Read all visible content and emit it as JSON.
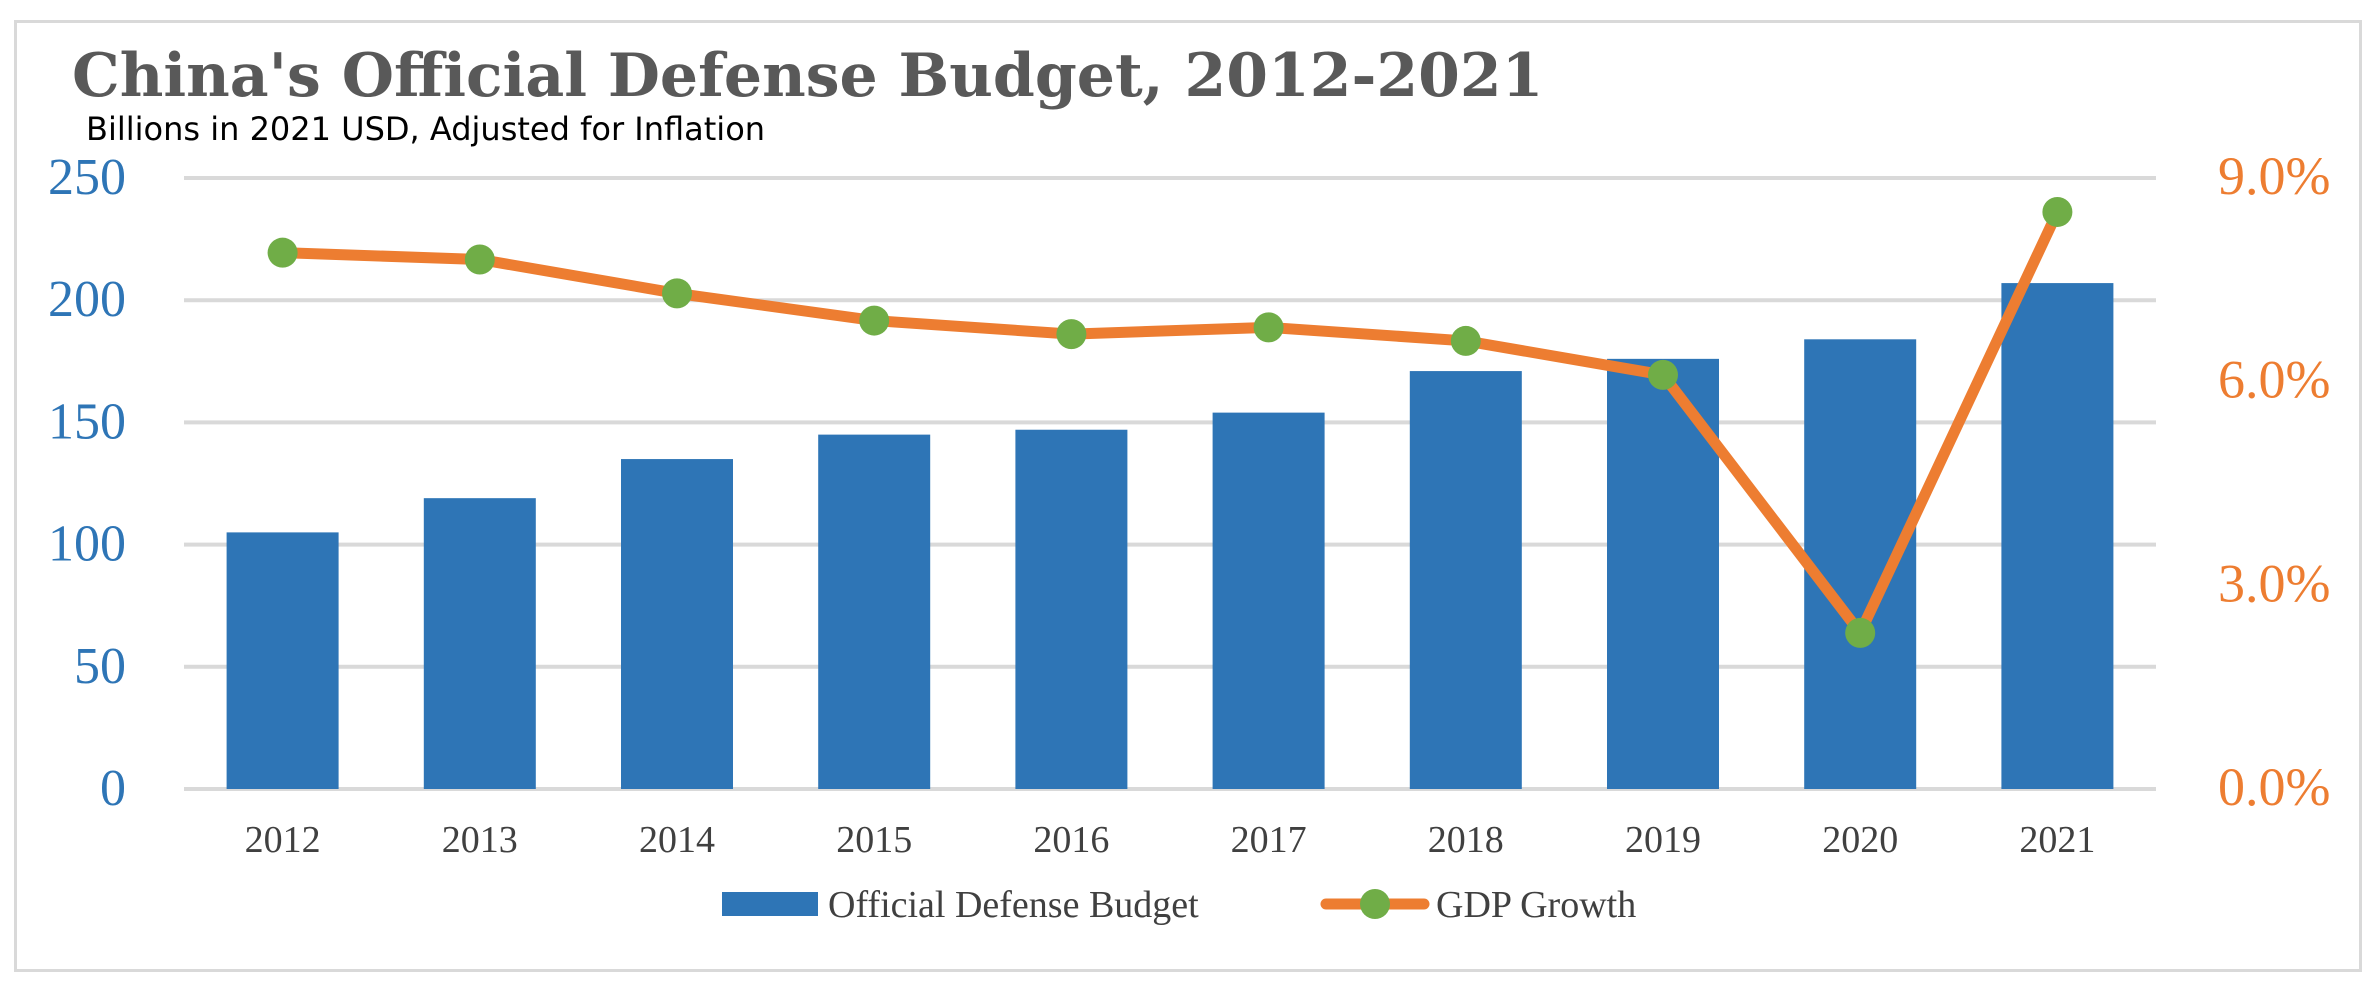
{
  "chart_data": {
    "type": "bar",
    "title": "China's Official Defense Budget, 2012-2021",
    "subtitle": "Billions in 2021 USD, Adjusted for Inflation",
    "categories": [
      "2012",
      "2013",
      "2014",
      "2015",
      "2016",
      "2017",
      "2018",
      "2019",
      "2020",
      "2021"
    ],
    "series": [
      {
        "name": "Official Defense Budget",
        "type": "bar",
        "axis": "left",
        "color": "#2e75b6",
        "values": [
          105,
          119,
          135,
          145,
          147,
          154,
          171,
          176,
          184,
          207
        ]
      },
      {
        "name": "GDP Growth",
        "type": "line",
        "axis": "right",
        "color": "#ed7d31",
        "marker_color": "#70ad47",
        "values": [
          0.079,
          0.078,
          0.073,
          0.069,
          0.067,
          0.068,
          0.066,
          0.061,
          0.023,
          0.085
        ]
      }
    ],
    "y_left": {
      "range": [
        0,
        250
      ],
      "ticks": [
        "0",
        "50",
        "100",
        "150",
        "200",
        "250"
      ],
      "tick_values": [
        0,
        50,
        100,
        150,
        200,
        250
      ],
      "color": "#2e75b6"
    },
    "y_right": {
      "range": [
        0,
        0.09
      ],
      "ticks": [
        "0.0%",
        "3.0%",
        "6.0%",
        "9.0%"
      ],
      "tick_values": [
        0,
        0.03,
        0.06,
        0.09
      ],
      "color": "#ed7d31"
    },
    "grid": true,
    "legend": "bottom"
  }
}
